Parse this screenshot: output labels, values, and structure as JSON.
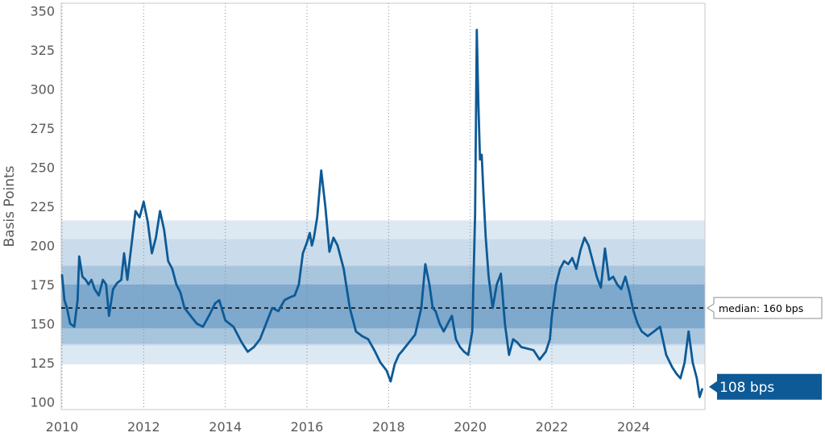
{
  "chart_data": {
    "type": "line",
    "ylabel": "Basis Points",
    "xlim": [
      2010,
      2025.75
    ],
    "ylim": [
      95,
      355
    ],
    "x_ticks": [
      2010,
      2012,
      2014,
      2016,
      2018,
      2020,
      2022,
      2024
    ],
    "x_tick_labels": [
      "2010",
      "2012",
      "2014",
      "2016",
      "2018",
      "2020",
      "2022",
      "2024"
    ],
    "y_ticks": [
      100,
      125,
      150,
      175,
      200,
      225,
      250,
      275,
      300,
      325,
      350
    ],
    "y_tick_labels": [
      "100",
      "125",
      "150",
      "175",
      "200",
      "225",
      "250",
      "275",
      "300",
      "325",
      "350"
    ],
    "vertical_grid": true,
    "horizontal_grid": false,
    "colors": {
      "line": "#0d5a96",
      "band_outer": "#dce8f2",
      "band_mid": "#b8d0e3",
      "band_inner": "#8fb4d2",
      "band_core": "#6f9fc6",
      "median_line": "#000000",
      "current_box": "#0d5a96"
    },
    "bands": [
      {
        "from": 124,
        "to": 216,
        "color": "#dce8f2"
      },
      {
        "from": 136,
        "to": 204,
        "color": "#cadceb"
      },
      {
        "from": 137,
        "to": 187,
        "color": "#a8c5de"
      },
      {
        "from": 147,
        "to": 175,
        "color": "#7ea8cc"
      }
    ],
    "median": {
      "value": 160,
      "label": "median: 160 bps"
    },
    "current": {
      "value": 108,
      "label": "108 bps"
    },
    "series": [
      {
        "x": [
          2010.0,
          2010.06,
          2010.12,
          2010.2,
          2010.3,
          2010.38,
          2010.42,
          2010.5,
          2010.58,
          2010.65,
          2010.72,
          2010.8,
          2010.9,
          2011.0,
          2011.08,
          2011.15,
          2011.25,
          2011.35,
          2011.45,
          2011.52,
          2011.6,
          2011.7,
          2011.8,
          2011.9,
          2012.0,
          2012.1,
          2012.2,
          2012.3,
          2012.4,
          2012.5,
          2012.6,
          2012.7,
          2012.8,
          2012.9,
          2013.0,
          2013.15,
          2013.3,
          2013.45,
          2013.6,
          2013.75,
          2013.85,
          2014.0,
          2014.2,
          2014.4,
          2014.55,
          2014.7,
          2014.85,
          2015.0,
          2015.15,
          2015.3,
          2015.45,
          2015.6,
          2015.7,
          2015.8,
          2015.9,
          2016.0,
          2016.07,
          2016.12,
          2016.17,
          2016.25,
          2016.35,
          2016.45,
          2016.55,
          2016.65,
          2016.75,
          2016.9,
          2017.05,
          2017.2,
          2017.35,
          2017.5,
          2017.65,
          2017.8,
          2017.95,
          2018.05,
          2018.15,
          2018.25,
          2018.35,
          2018.5,
          2018.65,
          2018.8,
          2018.9,
          2019.0,
          2019.08,
          2019.15,
          2019.25,
          2019.35,
          2019.45,
          2019.55,
          2019.65,
          2019.75,
          2019.85,
          2019.95,
          2020.05,
          2020.12,
          2020.16,
          2020.2,
          2020.24,
          2020.28,
          2020.32,
          2020.38,
          2020.45,
          2020.55,
          2020.65,
          2020.75,
          2020.85,
          2020.95,
          2021.05,
          2021.15,
          2021.25,
          2021.4,
          2021.55,
          2021.7,
          2021.85,
          2021.95,
          2022.0,
          2022.1,
          2022.2,
          2022.3,
          2022.4,
          2022.5,
          2022.6,
          2022.7,
          2022.8,
          2022.9,
          2023.0,
          2023.1,
          2023.2,
          2023.3,
          2023.4,
          2023.5,
          2023.6,
          2023.7,
          2023.8,
          2023.9,
          2024.0,
          2024.1,
          2024.2,
          2024.35,
          2024.5,
          2024.65,
          2024.8,
          2024.95,
          2025.05,
          2025.15,
          2025.25,
          2025.35,
          2025.45,
          2025.55,
          2025.62,
          2025.68
        ],
        "y": [
          181,
          165,
          160,
          150,
          148,
          165,
          193,
          180,
          178,
          175,
          178,
          172,
          168,
          178,
          175,
          155,
          172,
          176,
          178,
          195,
          178,
          200,
          222,
          218,
          228,
          215,
          195,
          205,
          222,
          210,
          190,
          185,
          175,
          170,
          160,
          155,
          150,
          148,
          155,
          163,
          165,
          152,
          148,
          138,
          132,
          135,
          140,
          150,
          160,
          158,
          165,
          167,
          168,
          175,
          195,
          202,
          208,
          200,
          205,
          218,
          248,
          225,
          196,
          205,
          200,
          185,
          160,
          145,
          142,
          140,
          133,
          125,
          120,
          113,
          124,
          130,
          133,
          138,
          143,
          160,
          188,
          175,
          160,
          158,
          150,
          145,
          150,
          155,
          140,
          135,
          132,
          130,
          145,
          220,
          338,
          290,
          255,
          258,
          235,
          205,
          180,
          160,
          175,
          182,
          150,
          130,
          140,
          138,
          135,
          134,
          133,
          127,
          132,
          140,
          155,
          175,
          185,
          190,
          188,
          192,
          185,
          197,
          205,
          200,
          190,
          180,
          173,
          198,
          178,
          180,
          175,
          172,
          180,
          170,
          158,
          150,
          145,
          142,
          145,
          148,
          130,
          122,
          118,
          115,
          125,
          145,
          125,
          115,
          103,
          108
        ]
      }
    ]
  }
}
